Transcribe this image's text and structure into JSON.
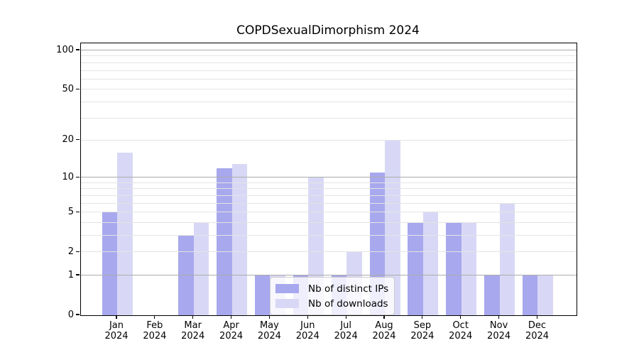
{
  "figure": {
    "background": "#ffffff"
  },
  "chart_data": {
    "type": "bar",
    "title": "COPDSexualDimorphism 2024",
    "categories": [
      "Jan",
      "Feb",
      "Mar",
      "Apr",
      "May",
      "Jun",
      "Jul",
      "Aug",
      "Sep",
      "Oct",
      "Nov",
      "Dec"
    ],
    "year_label": "2024",
    "series": [
      {
        "name": "Nb of distinct IPs",
        "color": "#a8a8ee",
        "values": [
          5,
          0,
          3,
          12,
          1,
          1,
          1,
          11,
          4,
          4,
          1,
          1
        ]
      },
      {
        "name": "Nb of downloads",
        "color": "#d8d8f6",
        "values": [
          16,
          0,
          4,
          13,
          1,
          10,
          2,
          20,
          5,
          4,
          6,
          1
        ]
      }
    ],
    "xlabel": "",
    "ylabel": "",
    "yscale": "log1p",
    "ylim": [
      0,
      113
    ],
    "yticks": [
      0,
      1,
      2,
      5,
      10,
      20,
      50,
      100
    ],
    "grid": {
      "major_values": [
        1,
        10,
        100
      ],
      "minor_values": [
        2,
        3,
        4,
        5,
        6,
        7,
        8,
        9,
        20,
        30,
        40,
        50,
        60,
        70,
        80,
        90
      ],
      "major_color": "#ababab",
      "minor_color": "#e4e4e4"
    },
    "legend": {
      "position": "lower center"
    }
  }
}
